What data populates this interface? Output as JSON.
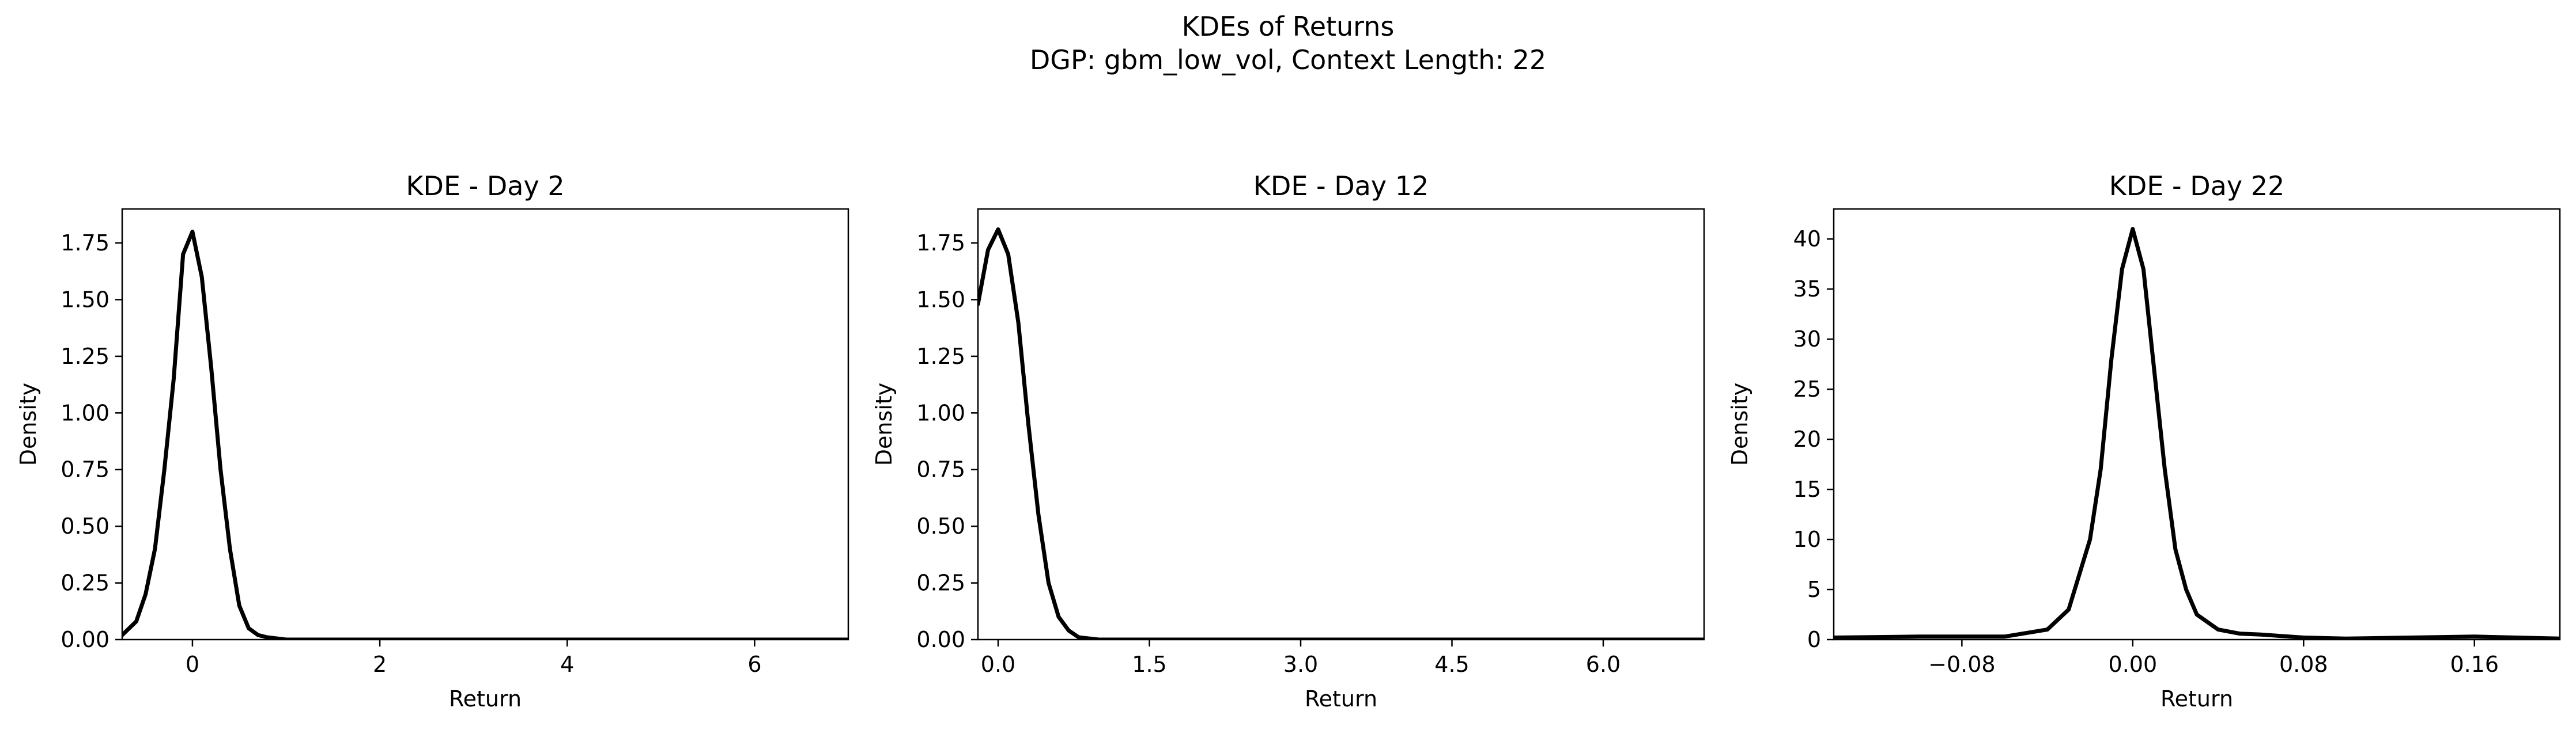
{
  "figure": {
    "title_line1": "KDEs of Returns",
    "title_line2": "DGP: gbm_low_vol, Context Length: 22"
  },
  "chart_data": [
    {
      "type": "line",
      "title": "KDE - Day 2",
      "xlabel": "Return",
      "ylabel": "Density",
      "xlim": [
        -0.75,
        7.0
      ],
      "ylim": [
        0,
        1.9
      ],
      "xticks": [
        0,
        2,
        4,
        6
      ],
      "xtick_labels": [
        "0",
        "2",
        "4",
        "6"
      ],
      "yticks": [
        0,
        0.25,
        0.5,
        0.75,
        1.0,
        1.25,
        1.5,
        1.75
      ],
      "ytick_labels": [
        "0.00",
        "0.25",
        "0.50",
        "0.75",
        "1.00",
        "1.25",
        "1.50",
        "1.75"
      ],
      "line_color": "#000000",
      "series": [
        {
          "x": [
            -0.75,
            -0.6,
            -0.5,
            -0.4,
            -0.3,
            -0.2,
            -0.1,
            0.0,
            0.1,
            0.2,
            0.3,
            0.4,
            0.5,
            0.6,
            0.7,
            0.8,
            1.0,
            2.0,
            4.0,
            6.0,
            7.0
          ],
          "y": [
            0.02,
            0.08,
            0.2,
            0.4,
            0.75,
            1.15,
            1.7,
            1.8,
            1.6,
            1.2,
            0.75,
            0.4,
            0.15,
            0.05,
            0.02,
            0.01,
            0.0,
            0.0,
            0.0,
            0.0,
            0.0
          ]
        }
      ]
    },
    {
      "type": "line",
      "title": "KDE - Day 12",
      "xlabel": "Return",
      "ylabel": "Density",
      "xlim": [
        -0.2,
        7.0
      ],
      "ylim": [
        0,
        1.9
      ],
      "xticks": [
        0,
        1.5,
        3.0,
        4.5,
        6.0
      ],
      "xtick_labels": [
        "0.0",
        "1.5",
        "3.0",
        "4.5",
        "6.0"
      ],
      "yticks": [
        0,
        0.25,
        0.5,
        0.75,
        1.0,
        1.25,
        1.5,
        1.75
      ],
      "ytick_labels": [
        "0.00",
        "0.25",
        "0.50",
        "0.75",
        "1.00",
        "1.25",
        "1.50",
        "1.75"
      ],
      "line_color": "#000000",
      "series": [
        {
          "x": [
            -0.2,
            -0.1,
            0.0,
            0.1,
            0.2,
            0.3,
            0.4,
            0.5,
            0.6,
            0.7,
            0.8,
            1.0,
            1.5,
            3.0,
            4.5,
            6.0,
            7.0
          ],
          "y": [
            1.48,
            1.72,
            1.81,
            1.7,
            1.4,
            0.95,
            0.55,
            0.25,
            0.1,
            0.04,
            0.01,
            0.0,
            0.0,
            0.0,
            0.0,
            0.0,
            0.0
          ]
        }
      ]
    },
    {
      "type": "line",
      "title": "KDE - Day 22",
      "xlabel": "Return",
      "ylabel": "Density",
      "xlim": [
        -0.14,
        0.2
      ],
      "ylim": [
        0,
        43
      ],
      "xticks": [
        -0.08,
        0.0,
        0.08,
        0.16
      ],
      "xtick_labels": [
        "−0.08",
        "0.00",
        "0.08",
        "0.16"
      ],
      "yticks": [
        0,
        5,
        10,
        15,
        20,
        25,
        30,
        35,
        40
      ],
      "ytick_labels": [
        "0",
        "5",
        "10",
        "15",
        "20",
        "25",
        "30",
        "35",
        "40"
      ],
      "line_color": "#000000",
      "series": [
        {
          "x": [
            -0.14,
            -0.1,
            -0.06,
            -0.04,
            -0.03,
            -0.02,
            -0.015,
            -0.01,
            -0.005,
            0.0,
            0.005,
            0.01,
            0.015,
            0.02,
            0.025,
            0.03,
            0.04,
            0.05,
            0.06,
            0.08,
            0.1,
            0.16,
            0.2
          ],
          "y": [
            0.2,
            0.3,
            0.3,
            1.0,
            3.0,
            10.0,
            17.0,
            28.0,
            37.0,
            41.0,
            37.0,
            27.0,
            17.0,
            9.0,
            5.0,
            2.5,
            1.0,
            0.6,
            0.5,
            0.2,
            0.1,
            0.3,
            0.1
          ]
        }
      ]
    }
  ]
}
